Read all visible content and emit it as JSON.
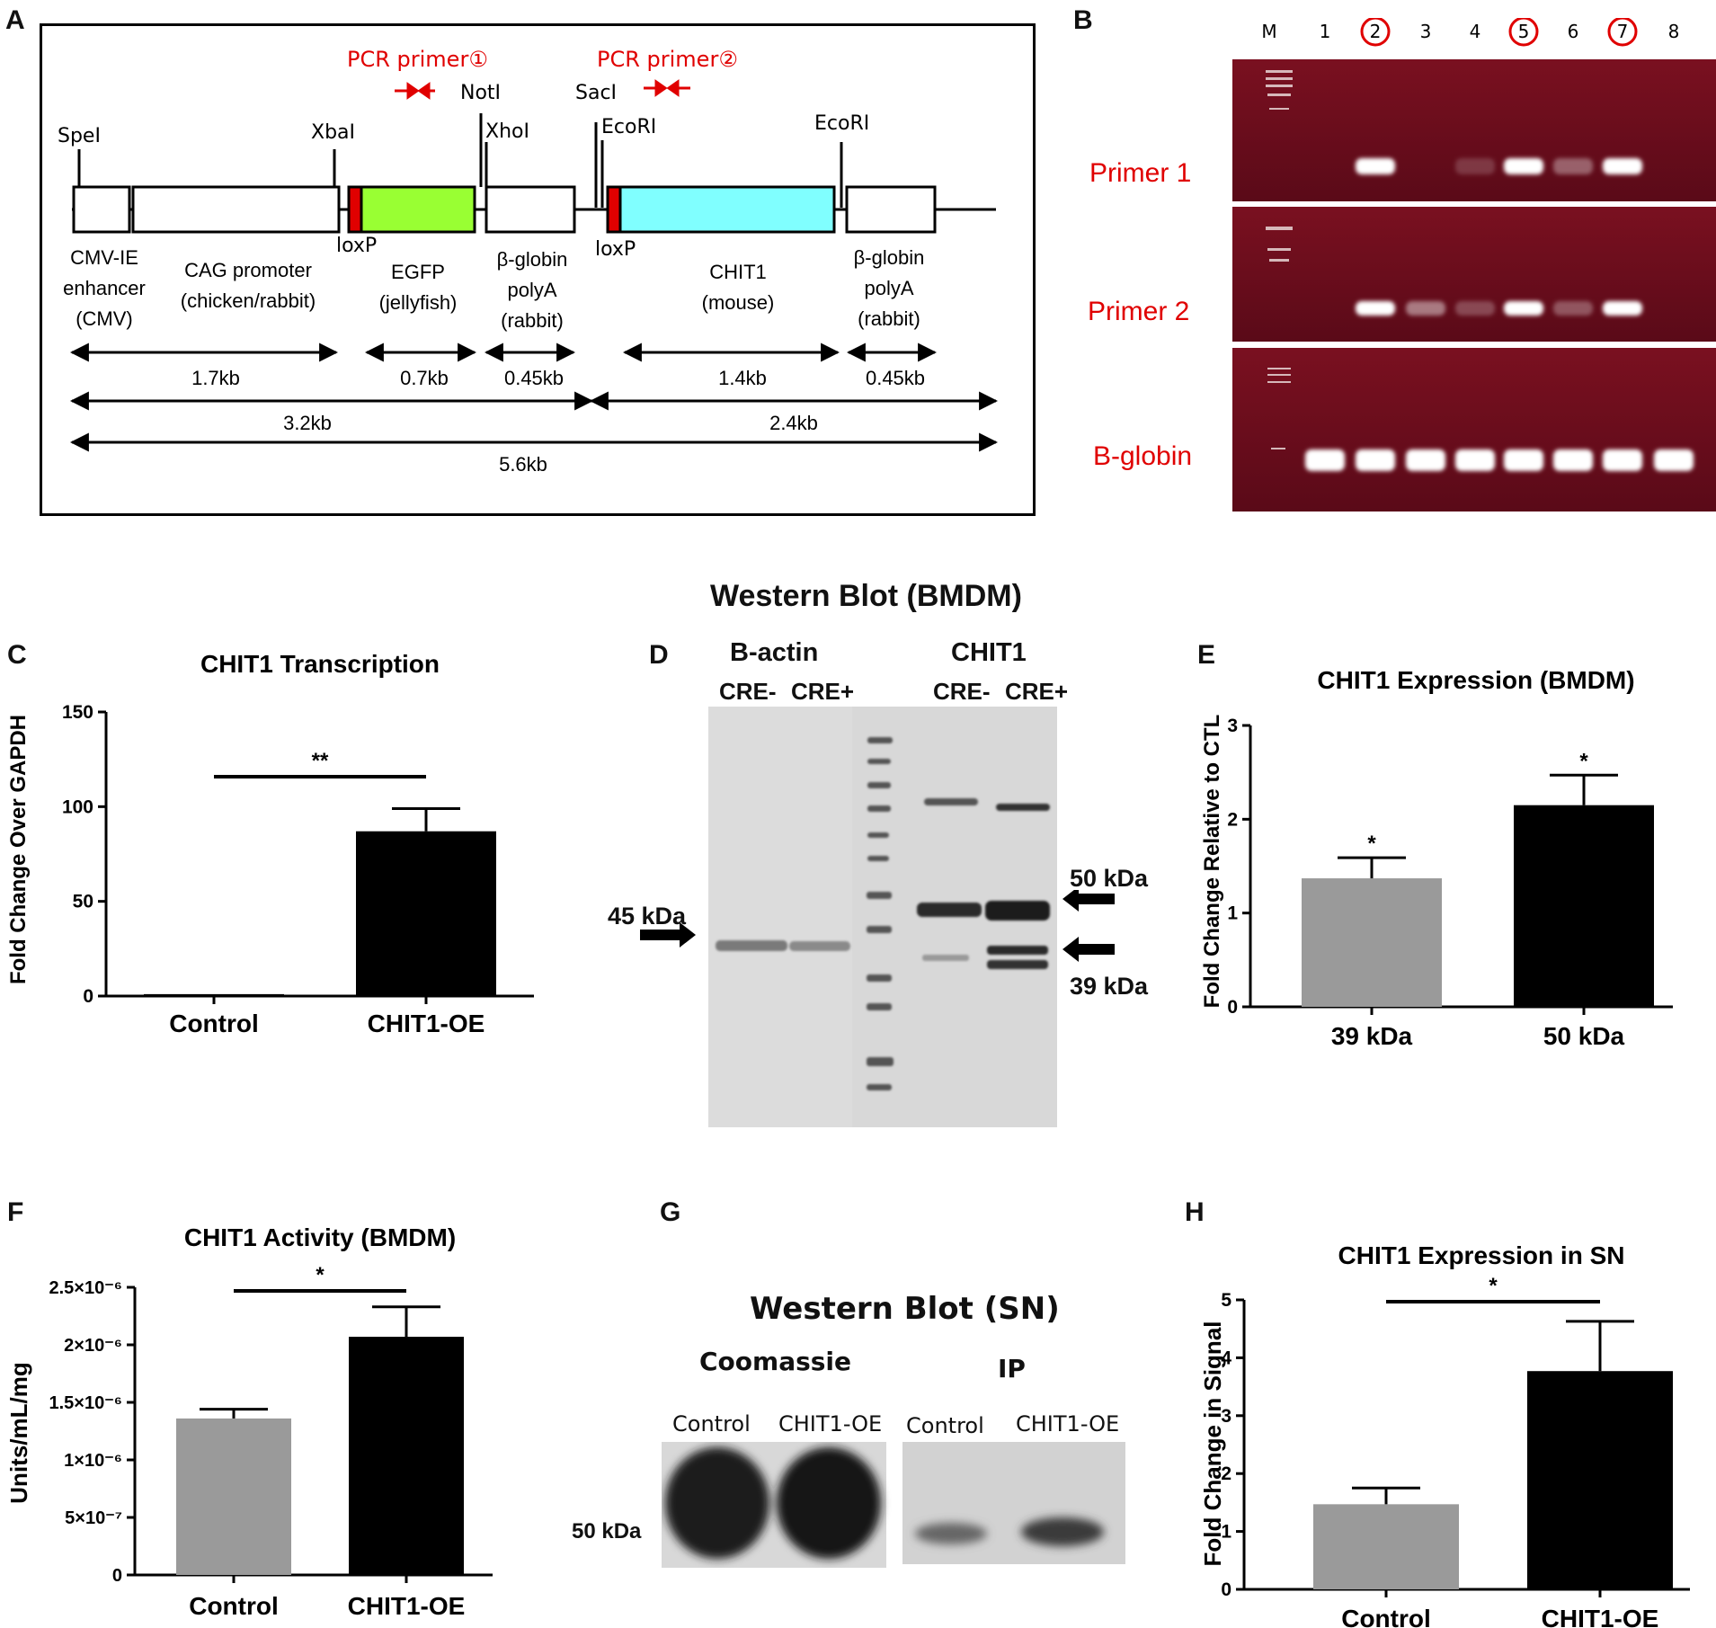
{
  "panels": {
    "A": "A",
    "B": "B",
    "C": "C",
    "D": "D",
    "E": "E",
    "F": "F",
    "G": "G",
    "H": "H"
  },
  "panel_a": {
    "pcr1": "PCR primer①",
    "pcr2": "PCR primer②",
    "sites": {
      "spel": "SpeI",
      "xbal": "XbaI",
      "notl": "NotI",
      "xhol": "XhoI",
      "sacl": "SacI",
      "ecori1": "EcoRI",
      "ecori2": "EcoRI"
    },
    "loxp": "loxP",
    "parts": {
      "cmv": [
        "CMV-IE",
        "enhancer",
        "(CMV)"
      ],
      "cag": [
        "CAG promoter",
        "(chicken/rabbit)"
      ],
      "egfp": [
        "EGFP",
        "(jellyfish)"
      ],
      "bglob1": [
        "β-globin",
        "polyA",
        "(rabbit)"
      ],
      "chit1": [
        "CHIT1",
        "(mouse)"
      ],
      "bglob2": [
        "β-globin",
        "polyA",
        "(rabbit)"
      ]
    },
    "sizes": {
      "s17": "1.7kb",
      "s07": "0.7kb",
      "s045a": "0.45kb",
      "s14": "1.4kb",
      "s045b": "0.45kb",
      "s32": "3.2kb",
      "s24": "2.4kb",
      "s56": "5.6kb"
    },
    "colors": {
      "egfp": "#99ff33",
      "chit1": "#80ffff",
      "loxp": "#e00000",
      "primer": "#e00000"
    }
  },
  "panel_b": {
    "lanes": [
      "M",
      "1",
      "2",
      "3",
      "4",
      "5",
      "6",
      "7",
      "8"
    ],
    "circled": [
      "2",
      "5",
      "7"
    ],
    "rows": [
      "Primer 1",
      "Primer 2",
      "B-globin"
    ],
    "label_color": "#e00000"
  },
  "blot_title_bmdm": "Western Blot (BMDM)",
  "panel_d": {
    "bactin": "B-actin",
    "chit1": "CHIT1",
    "cre_minus": "CRE-",
    "cre_plus": "CRE+",
    "kda45": "45 kDa",
    "kda50": "50 kDa",
    "kda39": "39 kDa"
  },
  "panel_g": {
    "title": "Western Blot (SN)",
    "coomassie": "Coomassie",
    "ip": "IP",
    "control": "Control",
    "oe": "CHIT1-OE",
    "kda50": "50 kDa"
  },
  "chart_data": [
    {
      "id": "C",
      "type": "bar",
      "title": "CHIT1 Transcription",
      "ylabel": "Fold Change Over GAPDH",
      "categories": [
        "Control",
        "CHIT1-OE"
      ],
      "values": [
        1,
        87
      ],
      "errors": [
        0,
        12
      ],
      "colors": [
        "#000000",
        "#000000"
      ],
      "ylim": [
        0,
        150
      ],
      "yticks": [
        "0",
        "50",
        "100",
        "150"
      ],
      "sig": "**"
    },
    {
      "id": "E",
      "type": "bar",
      "title": "CHIT1 Expression (BMDM)",
      "ylabel": "Fold Change Relative to CTL",
      "categories": [
        "39 kDa",
        "50 kDa"
      ],
      "values": [
        1.37,
        2.15
      ],
      "errors": [
        0.22,
        0.32
      ],
      "colors": [
        "#9a9a9a",
        "#000000"
      ],
      "ylim": [
        0,
        3
      ],
      "yticks": [
        "0",
        "1",
        "2",
        "3"
      ],
      "bar_sig": [
        "*",
        "*"
      ]
    },
    {
      "id": "F",
      "type": "bar",
      "title": "CHIT1 Activity (BMDM)",
      "ylabel": "Units/mL/mg",
      "categories": [
        "Control",
        "CHIT1-OE"
      ],
      "values": [
        1.36e-06,
        2.07e-06
      ],
      "errors": [
        8e-08,
        2.6e-07
      ],
      "colors": [
        "#9a9a9a",
        "#000000"
      ],
      "ylim": [
        0,
        2.5e-06
      ],
      "yticks": [
        "0",
        "5×10⁻⁷",
        "1×10⁻⁶",
        "1.5×10⁻⁶",
        "2×10⁻⁶",
        "2.5×10⁻⁶"
      ],
      "sig": "*"
    },
    {
      "id": "H",
      "type": "bar",
      "title": "CHIT1 Expression in SN",
      "ylabel": "Fold Change in Signal",
      "categories": [
        "Control",
        "CHIT1-OE"
      ],
      "values": [
        1.47,
        3.77
      ],
      "errors": [
        0.28,
        0.86
      ],
      "colors": [
        "#9a9a9a",
        "#000000"
      ],
      "ylim": [
        0,
        5
      ],
      "yticks": [
        "0",
        "1",
        "2",
        "3",
        "4",
        "5"
      ],
      "sig": "*"
    }
  ]
}
